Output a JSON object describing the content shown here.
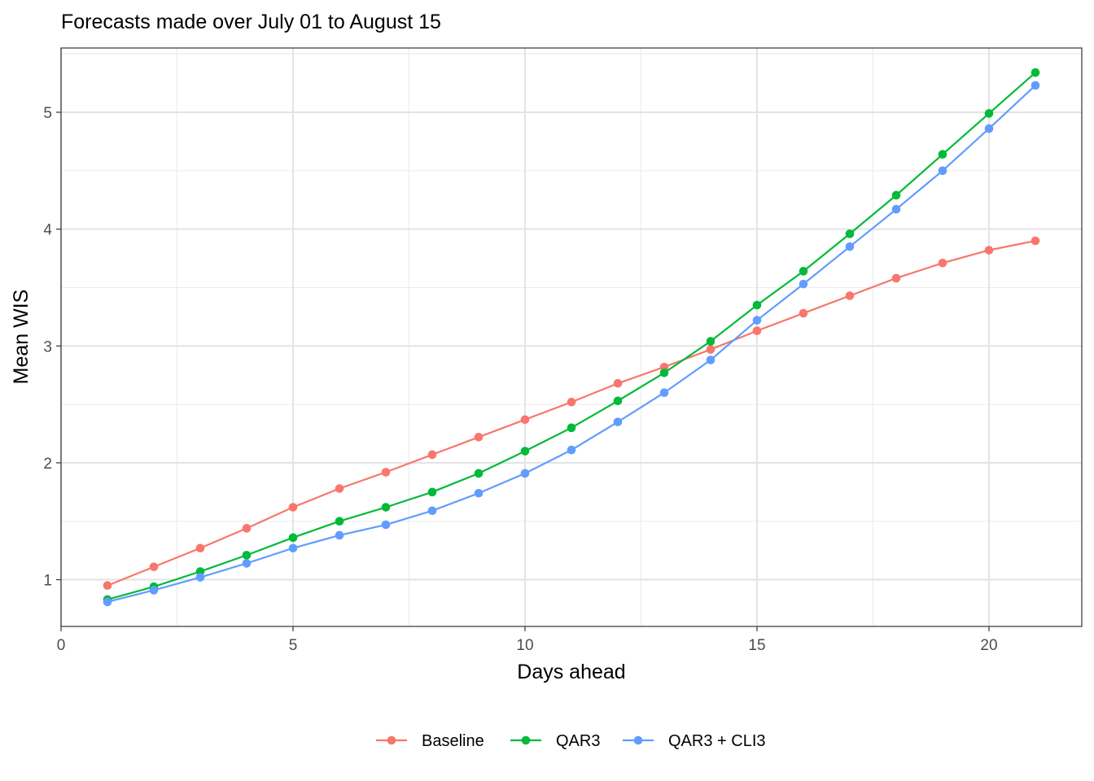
{
  "chart_data": {
    "type": "line",
    "title": "Forecasts made over July 01 to August 15",
    "xlabel": "Days ahead",
    "ylabel": "Mean WIS",
    "xlim": [
      0,
      22
    ],
    "ylim": [
      0.6,
      5.55
    ],
    "x_ticks": [
      0,
      5,
      10,
      15,
      20
    ],
    "y_ticks": [
      1,
      2,
      3,
      4,
      5
    ],
    "grid": true,
    "legend_position": "bottom",
    "x": [
      1,
      2,
      3,
      4,
      5,
      6,
      7,
      8,
      9,
      10,
      11,
      12,
      13,
      14,
      15,
      16,
      17,
      18,
      19,
      20,
      21
    ],
    "series": [
      {
        "name": "Baseline",
        "color": "#F8766D",
        "values": [
          0.95,
          1.11,
          1.27,
          1.44,
          1.62,
          1.78,
          1.92,
          2.07,
          2.22,
          2.37,
          2.52,
          2.68,
          2.82,
          2.97,
          3.13,
          3.28,
          3.43,
          3.58,
          3.71,
          3.82,
          3.9
        ]
      },
      {
        "name": "QAR3",
        "color": "#00BA38",
        "values": [
          0.83,
          0.94,
          1.07,
          1.21,
          1.36,
          1.5,
          1.62,
          1.75,
          1.91,
          2.1,
          2.3,
          2.53,
          2.77,
          3.04,
          3.35,
          3.64,
          3.96,
          4.29,
          4.64,
          4.99,
          5.34
        ]
      },
      {
        "name": "QAR3 + CLI3",
        "color": "#619CFF",
        "values": [
          0.81,
          0.91,
          1.02,
          1.14,
          1.27,
          1.38,
          1.47,
          1.59,
          1.74,
          1.91,
          2.11,
          2.35,
          2.6,
          2.88,
          3.22,
          3.53,
          3.85,
          4.17,
          4.5,
          4.86,
          5.23
        ]
      }
    ]
  }
}
